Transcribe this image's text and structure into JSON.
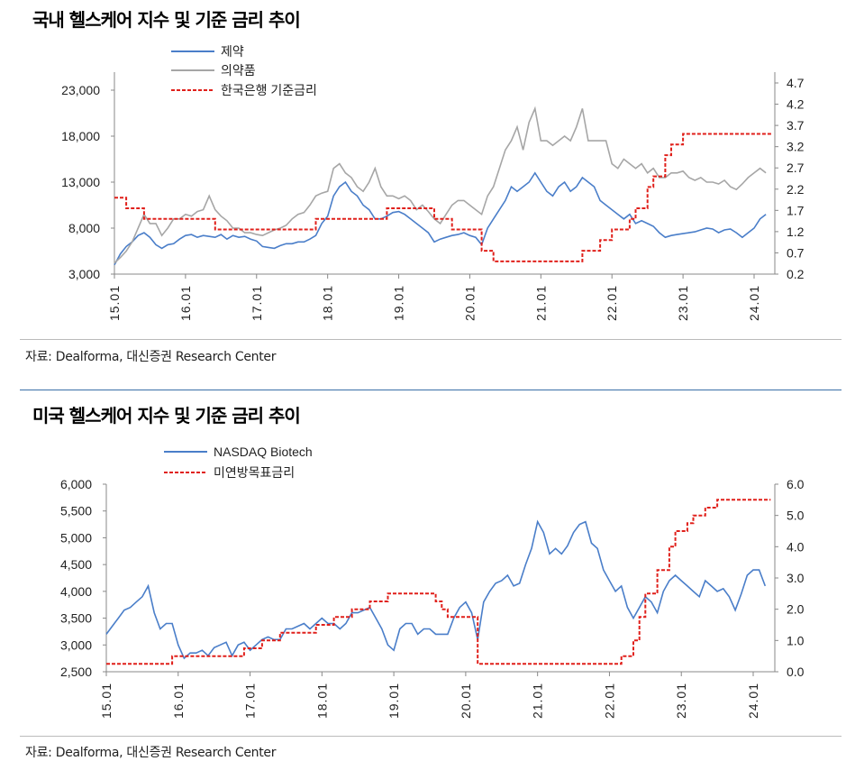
{
  "charts_text": {
    "top_title": "국내 헬스케어 지수 및 기준 금리 추이",
    "bottom_title": "미국 헬스케어 지수 및 기준 금리 추이",
    "source": "자료:  Dealforma, 대신증권 Research Center"
  },
  "chart_data": [
    {
      "type": "line",
      "title": "국내 헬스케어 지수 및 기준 금리 추이",
      "x_tick_labels": [
        "15.01",
        "16.01",
        "17.01",
        "18.01",
        "19.01",
        "20.01",
        "21.01",
        "22.01",
        "23.01",
        "24.01"
      ],
      "x_start": "2015-01",
      "x_frequency": "monthly",
      "y_left": {
        "range": [
          3000,
          25000
        ],
        "ticks": [
          "3,000",
          "8,000",
          "13,000",
          "18,000",
          "23,000"
        ],
        "tick_values": [
          3000,
          8000,
          13000,
          18000,
          23000
        ]
      },
      "y_right": {
        "range": [
          0.2,
          4.7
        ],
        "ticks": [
          "0.2",
          "0.7",
          "1.2",
          "1.7",
          "2.2",
          "2.7",
          "3.2",
          "3.7",
          "4.2",
          "4.7"
        ],
        "tick_values": [
          0.2,
          0.7,
          1.2,
          1.7,
          2.2,
          2.7,
          3.2,
          3.7,
          4.2,
          4.7
        ]
      },
      "legend_position": "top-left",
      "grid": false,
      "series": [
        {
          "name": "제약",
          "axis": "left",
          "color": "#4a7ec9",
          "style": "solid",
          "values": [
            4000,
            5200,
            6000,
            6500,
            7200,
            7500,
            7000,
            6200,
            5800,
            6200,
            6300,
            6800,
            7200,
            7300,
            7000,
            7200,
            7100,
            7000,
            7300,
            6800,
            7200,
            7000,
            7100,
            6800,
            6600,
            6000,
            5900,
            5800,
            6100,
            6300,
            6300,
            6500,
            6500,
            6800,
            7200,
            8500,
            9300,
            11500,
            12500,
            13000,
            12000,
            11500,
            10500,
            10000,
            9000,
            9000,
            9300,
            9700,
            9800,
            9500,
            9000,
            8500,
            8000,
            7500,
            6500,
            6800,
            7000,
            7200,
            7300,
            7500,
            7200,
            7000,
            6200,
            8000,
            9000,
            10000,
            11000,
            12500,
            12000,
            12500,
            13000,
            14000,
            13000,
            12000,
            11500,
            12500,
            13000,
            12000,
            12500,
            13500,
            13000,
            12500,
            11000,
            10500,
            10000,
            9500,
            9000,
            9500,
            8500,
            8800,
            8500,
            8200,
            7500,
            7000,
            7200,
            7300,
            7400,
            7500,
            7600,
            7800,
            8000,
            7900,
            7500,
            7800,
            7900,
            7500,
            7000,
            7500,
            8000,
            9000,
            9500
          ]
        },
        {
          "name": "의약품",
          "axis": "left",
          "color": "#a6a6a6",
          "style": "solid",
          "values": [
            4200,
            4800,
            5500,
            6500,
            8000,
            9500,
            8500,
            8500,
            7200,
            8000,
            9000,
            9000,
            9500,
            9300,
            9800,
            10000,
            11500,
            10000,
            9300,
            8800,
            8000,
            8000,
            7500,
            7500,
            7300,
            7200,
            7500,
            7800,
            8000,
            8300,
            9000,
            9500,
            9700,
            10500,
            11500,
            11800,
            12000,
            14500,
            15000,
            14000,
            13500,
            12500,
            12000,
            13000,
            14500,
            12500,
            11500,
            11500,
            11200,
            11500,
            11000,
            10000,
            10500,
            9800,
            9000,
            8500,
            9500,
            10500,
            11000,
            11000,
            10500,
            10000,
            9500,
            11500,
            12500,
            14500,
            16500,
            17500,
            19000,
            16500,
            19500,
            21000,
            17500,
            17500,
            17000,
            17500,
            18000,
            17500,
            19000,
            21000,
            17500,
            17500,
            17500,
            17500,
            15000,
            14500,
            15500,
            15000,
            14500,
            15000,
            14000,
            14500,
            13500,
            13500,
            14000,
            14000,
            14200,
            13500,
            13200,
            13500,
            13000,
            13000,
            12800,
            13200,
            12500,
            12200,
            12800,
            13500,
            14000,
            14500,
            14000
          ]
        },
        {
          "name": "한국은행 기준금리",
          "axis": "right",
          "color": "#e0201b",
          "style": "dashed-step",
          "steps": [
            [
              "2015-01",
              2.0
            ],
            [
              "2015-03",
              1.75
            ],
            [
              "2015-06",
              1.5
            ],
            [
              "2016-06",
              1.25
            ],
            [
              "2017-11",
              1.5
            ],
            [
              "2018-11",
              1.75
            ],
            [
              "2019-07",
              1.5
            ],
            [
              "2019-10",
              1.25
            ],
            [
              "2020-03",
              0.75
            ],
            [
              "2020-05",
              0.5
            ],
            [
              "2021-08",
              0.75
            ],
            [
              "2021-11",
              1.0
            ],
            [
              "2022-01",
              1.25
            ],
            [
              "2022-04",
              1.5
            ],
            [
              "2022-05",
              1.75
            ],
            [
              "2022-07",
              2.25
            ],
            [
              "2022-08",
              2.5
            ],
            [
              "2022-10",
              3.0
            ],
            [
              "2022-11",
              3.25
            ],
            [
              "2023-01",
              3.5
            ],
            [
              "2024-03",
              3.5
            ]
          ]
        }
      ]
    },
    {
      "type": "line",
      "title": "미국 헬스케어 지수 및 기준 금리 추이",
      "x_tick_labels": [
        "15.01",
        "16.01",
        "17.01",
        "18.01",
        "19.01",
        "20.01",
        "21.01",
        "22.01",
        "23.01",
        "24.01"
      ],
      "x_start": "2015-01",
      "x_frequency": "monthly",
      "y_left": {
        "range": [
          2500,
          6000
        ],
        "ticks": [
          "2,500",
          "3,000",
          "3,500",
          "4,000",
          "4,500",
          "5,000",
          "5,500",
          "6,000"
        ],
        "tick_values": [
          2500,
          3000,
          3500,
          4000,
          4500,
          5000,
          5500,
          6000
        ]
      },
      "y_right": {
        "range": [
          0,
          6
        ],
        "ticks": [
          "0.0",
          "1.0",
          "2.0",
          "3.0",
          "4.0",
          "5.0",
          "6.0"
        ],
        "tick_values": [
          0,
          1,
          2,
          3,
          4,
          5,
          6
        ]
      },
      "legend_position": "top-left",
      "grid": false,
      "series": [
        {
          "name": "NASDAQ Biotech",
          "axis": "left",
          "color": "#4a7ec9",
          "style": "solid",
          "values": [
            3200,
            3350,
            3500,
            3650,
            3700,
            3800,
            3900,
            4100,
            3600,
            3300,
            3400,
            3400,
            3000,
            2750,
            2850,
            2850,
            2900,
            2800,
            2950,
            3000,
            3050,
            2800,
            3000,
            3050,
            2900,
            3000,
            3100,
            3150,
            3100,
            3100,
            3300,
            3300,
            3350,
            3400,
            3300,
            3400,
            3500,
            3400,
            3400,
            3300,
            3400,
            3600,
            3600,
            3650,
            3700,
            3500,
            3300,
            3000,
            2900,
            3300,
            3400,
            3400,
            3200,
            3300,
            3300,
            3200,
            3200,
            3200,
            3500,
            3700,
            3800,
            3600,
            3100,
            3800,
            4000,
            4150,
            4200,
            4300,
            4100,
            4150,
            4500,
            4800,
            5300,
            5100,
            4700,
            4800,
            4700,
            4850,
            5100,
            5250,
            5300,
            4900,
            4800,
            4400,
            4200,
            4000,
            4100,
            3700,
            3500,
            3700,
            3900,
            3800,
            3600,
            4000,
            4200,
            4300,
            4200,
            4100,
            4000,
            3900,
            4200,
            4100,
            4000,
            4050,
            3900,
            3650,
            3950,
            4300,
            4400,
            4400,
            4100
          ]
        },
        {
          "name": "미연방목표금리",
          "axis": "right",
          "color": "#e0201b",
          "style": "dashed-step",
          "steps": [
            [
              "2015-01",
              0.25
            ],
            [
              "2015-12",
              0.5
            ],
            [
              "2016-12",
              0.75
            ],
            [
              "2017-03",
              1.0
            ],
            [
              "2017-06",
              1.25
            ],
            [
              "2017-12",
              1.5
            ],
            [
              "2018-03",
              1.75
            ],
            [
              "2018-06",
              2.0
            ],
            [
              "2018-09",
              2.25
            ],
            [
              "2018-12",
              2.5
            ],
            [
              "2019-08",
              2.25
            ],
            [
              "2019-09",
              2.0
            ],
            [
              "2019-10",
              1.75
            ],
            [
              "2020-03",
              0.25
            ],
            [
              "2022-03",
              0.5
            ],
            [
              "2022-05",
              1.0
            ],
            [
              "2022-06",
              1.75
            ],
            [
              "2022-07",
              2.5
            ],
            [
              "2022-09",
              3.25
            ],
            [
              "2022-11",
              4.0
            ],
            [
              "2022-12",
              4.5
            ],
            [
              "2023-02",
              4.75
            ],
            [
              "2023-03",
              5.0
            ],
            [
              "2023-05",
              5.25
            ],
            [
              "2023-07",
              5.5
            ],
            [
              "2024-03",
              5.5
            ]
          ]
        }
      ]
    }
  ]
}
